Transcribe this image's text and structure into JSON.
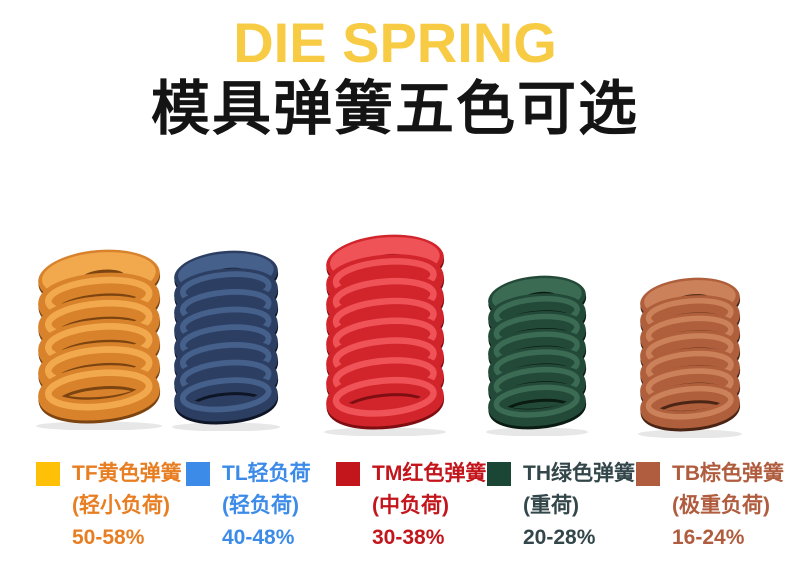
{
  "header": {
    "title_en": "DIE SPRING",
    "title_en_color": "#F8CB45",
    "title_zh": "模具弹簧五色可选",
    "title_zh_color": "#141414"
  },
  "springs": [
    {
      "id": "tf-yellow-spring",
      "color_main": "#D8822B",
      "color_light": "#F2A94D",
      "color_dark": "#7C4410",
      "coils": 5
    },
    {
      "id": "tl-blue-spring",
      "color_main": "#2C3F63",
      "color_light": "#46608C",
      "color_dark": "#0E1526",
      "coils": 7
    },
    {
      "id": "tm-red-spring",
      "color_main": "#D2242B",
      "color_light": "#EF5257",
      "color_dark": "#7E0E12",
      "coils": 7
    },
    {
      "id": "th-green-spring",
      "color_main": "#234A39",
      "color_light": "#3C6B54",
      "color_dark": "#0A1B12",
      "coils": 6
    },
    {
      "id": "tb-brown-spring",
      "color_main": "#AF5F3B",
      "color_light": "#CB8159",
      "color_dark": "#4A2414",
      "coils": 6
    }
  ],
  "legend": {
    "items": [
      {
        "name": "TF黄色弹簧",
        "load": "(轻小负荷)",
        "compression": "50-58%",
        "swatch": "#FFC107",
        "text_color": "#E87E22"
      },
      {
        "name": "TL轻负荷",
        "load": "(轻负荷)",
        "compression": "40-48%",
        "swatch": "#3D8BE8",
        "text_color": "#3D8BE8"
      },
      {
        "name": "TM红色弹簧",
        "load": "(中负荷)",
        "compression": "30-38%",
        "swatch": "#C3161C",
        "text_color": "#C3161C"
      },
      {
        "name": "TH绿色弹簧",
        "load": "(重荷)",
        "compression": "20-28%",
        "swatch": "#1B4636",
        "text_color": "#33474B"
      },
      {
        "name": "TB棕色弹簧",
        "load": "(极重负荷)",
        "compression": "16-24%",
        "swatch": "#B05C3E",
        "text_color": "#B05C3E"
      }
    ]
  }
}
